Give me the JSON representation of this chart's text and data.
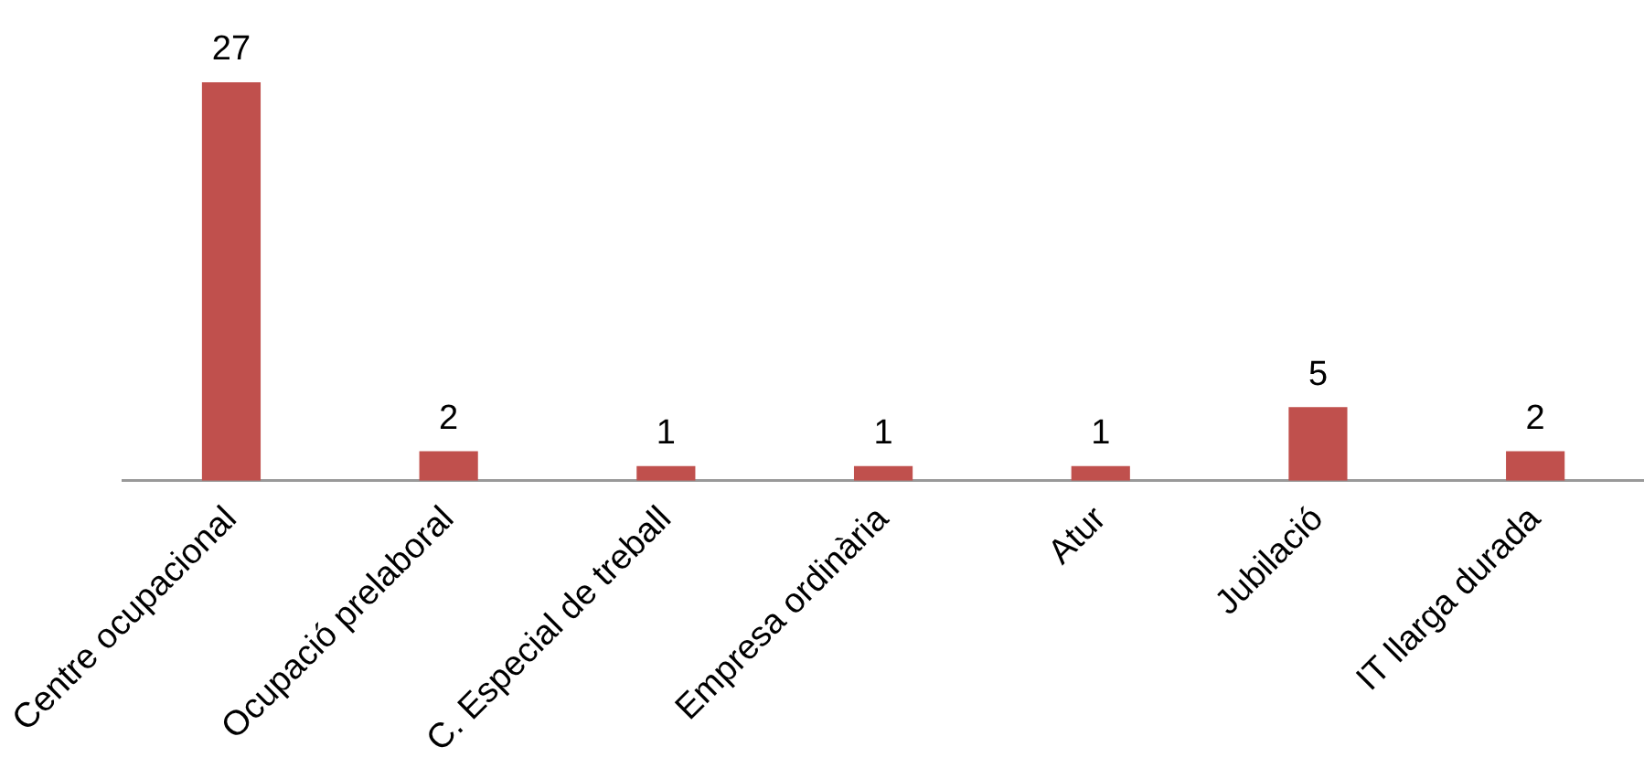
{
  "chart_data": {
    "type": "bar",
    "categories": [
      "Centre ocupacional",
      "Ocupació prelaboral",
      "C. Especial de treball",
      "Empresa ordinària",
      "Atur",
      "Jubilació",
      "IT llarga durada"
    ],
    "values": [
      27,
      2,
      1,
      1,
      1,
      5,
      2
    ],
    "color": "#c0504d",
    "data_labels": true,
    "tick_labels": "x",
    "grid": false,
    "legend": false
  }
}
